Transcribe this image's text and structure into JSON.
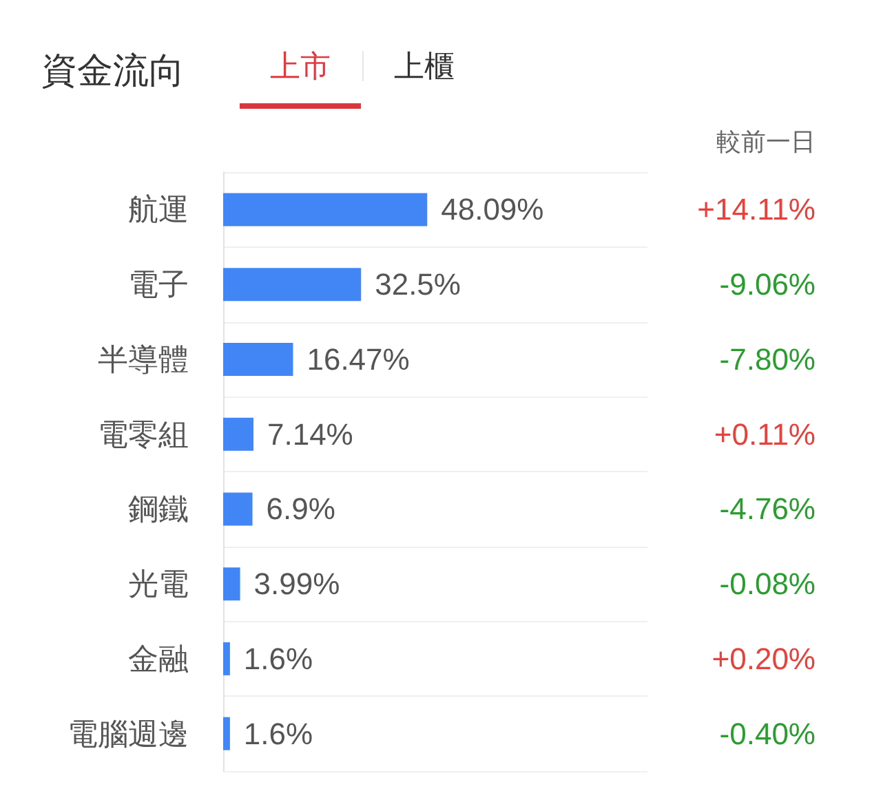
{
  "chart_data": {
    "type": "bar",
    "orientation": "horizontal",
    "title": "資金流向",
    "y2label": "較前一日",
    "categories": [
      "航運",
      "電子",
      "半導體",
      "電零組",
      "鋼鐵",
      "光電",
      "金融",
      "電腦週邊"
    ],
    "values": [
      48.09,
      32.5,
      16.47,
      7.14,
      6.9,
      3.99,
      1.6,
      1.6
    ],
    "color": "#4285f4",
    "value_labels": [
      "48.09%",
      "32.5%",
      "16.47%",
      "7.14%",
      "6.9%",
      "3.99%",
      "1.6%",
      "1.6%"
    ],
    "xlim": [
      0,
      100
    ],
    "grid": "y",
    "tick_labels": "y",
    "annotations": [
      "上市",
      "上櫃",
      "+14.11%",
      "-9.06%",
      "-7.80%",
      "+0.11%",
      "-4.76%",
      "-0.08%",
      "+0.20%",
      "-0.40%"
    ]
  }
}
